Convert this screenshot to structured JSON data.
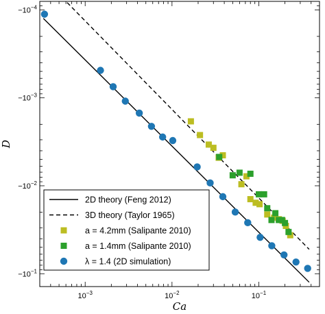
{
  "chart_data": {
    "type": "scatter",
    "xlabel": "Ca",
    "ylabel": "D",
    "x_scale": "log",
    "y_scale": "log",
    "y_axis_direction": "inverted",
    "xlim": [
      0.0003,
      0.5
    ],
    "ylim": [
      8e-05,
      0.14
    ],
    "grid": false,
    "legend_position": "bottom-left",
    "x_ticks": [
      {
        "value": 0.001,
        "base": "10",
        "exp": "−3"
      },
      {
        "value": 0.01,
        "base": "10",
        "exp": "−2"
      },
      {
        "value": 0.1,
        "base": "10",
        "exp": "−1"
      }
    ],
    "y_ticks": [
      {
        "value": 0.0001,
        "base": "−10",
        "exp": "−4"
      },
      {
        "value": 0.001,
        "base": "−10",
        "exp": "−3"
      },
      {
        "value": 0.01,
        "base": "−10",
        "exp": "−2"
      },
      {
        "value": 0.1,
        "base": "−10",
        "exp": "−1"
      }
    ],
    "lines": [
      {
        "name": "2D theory (Feng 2012)",
        "style": "solid",
        "color": "#000000",
        "x": [
          0.00033,
          0.38
        ],
        "y": [
          0.000125,
          0.125
        ]
      },
      {
        "name": "3D theory (Taylor 1965)",
        "style": "dashed",
        "color": "#000000",
        "x": [
          0.00062,
          0.38
        ],
        "y": [
          8.25e-05,
          0.0528
        ]
      }
    ],
    "series": [
      {
        "name": "a = 4.2mm (Salipante 2010)",
        "marker": "square",
        "color": "#bcbd22",
        "x": [
          0.0165,
          0.021,
          0.0265,
          0.03,
          0.0345,
          0.0385,
          0.063,
          0.072,
          0.08,
          0.092,
          0.102,
          0.125,
          0.15,
          0.17,
          0.188,
          0.205,
          0.23
        ],
        "y": [
          0.00185,
          0.00265,
          0.0034,
          0.0037,
          0.0048,
          0.0045,
          0.0096,
          0.0078,
          0.0142,
          0.0156,
          0.0162,
          0.0212,
          0.023,
          0.024,
          0.025,
          0.0286,
          0.0365
        ]
      },
      {
        "name": "a = 1.4mm (Salipante 2010)",
        "marker": "square",
        "color": "#2ca02c",
        "x": [
          0.035,
          0.05,
          0.06,
          0.08,
          0.1,
          0.115,
          0.125,
          0.14,
          0.155,
          0.17,
          0.185,
          0.2,
          0.22
        ],
        "y": [
          0.0047,
          0.0076,
          0.0071,
          0.0073,
          0.0125,
          0.0125,
          0.018,
          0.0245,
          0.0205,
          0.0245,
          0.0245,
          0.0265,
          0.0335
        ]
      },
      {
        "name": "λ = 1.4 (2D simulation)",
        "marker": "circle",
        "color": "#1f77b4",
        "x": [
          0.00034,
          0.0015,
          0.0021,
          0.0029,
          0.0042,
          0.0058,
          0.0078,
          0.0102,
          0.0195,
          0.0275,
          0.0385,
          0.0535,
          0.0745,
          0.1035,
          0.141,
          0.195,
          0.268,
          0.365
        ],
        "y": [
          0.000112,
          0.000487,
          0.000747,
          0.00109,
          0.00149,
          0.00211,
          0.00279,
          0.00306,
          0.0061,
          0.00928,
          0.0133,
          0.0199,
          0.0263,
          0.0386,
          0.0481,
          0.0611,
          0.0736,
          0.0869
        ]
      }
    ]
  }
}
